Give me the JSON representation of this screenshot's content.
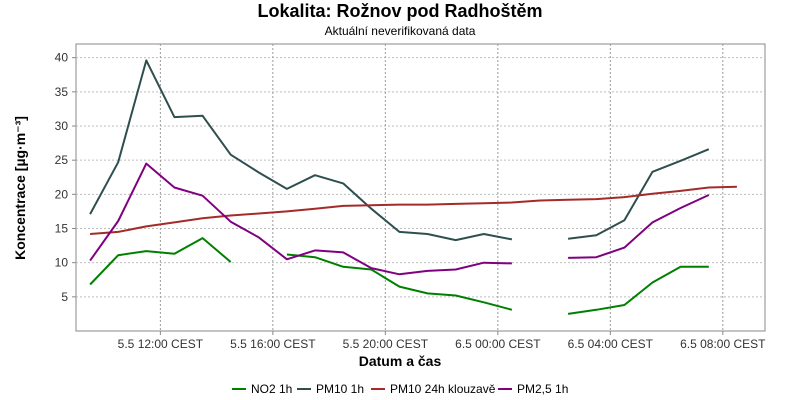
{
  "chart_data": {
    "type": "line",
    "title": "Lokalita: Rožnov pod Radhoštěm",
    "subtitle": "Aktuální neverifikovaná data",
    "xlabel": "Datum a čas",
    "ylabel": "Koncentrace [µg·m⁻³]",
    "ylim": [
      0,
      42
    ],
    "xlim": [
      9,
      33.5
    ],
    "yticks": [
      5,
      10,
      15,
      20,
      25,
      30,
      35,
      40
    ],
    "xticks": [
      {
        "x": 12,
        "label": "5.5 12:00 CEST"
      },
      {
        "x": 16,
        "label": "5.5 16:00 CEST"
      },
      {
        "x": 20,
        "label": "5.5 20:00 CEST"
      },
      {
        "x": 24,
        "label": "6.5 00:00 CEST"
      },
      {
        "x": 28,
        "label": "6.5 04:00 CEST"
      },
      {
        "x": 32,
        "label": "6.5 08:00 CEST"
      }
    ],
    "grid": true,
    "legend_position": "bottom",
    "series": [
      {
        "name": "NO2 1h",
        "color": "#008000",
        "points": [
          [
            9.5,
            6.8
          ],
          [
            10.5,
            11.1
          ],
          [
            11.5,
            11.7
          ],
          [
            12.5,
            11.3
          ],
          [
            13.5,
            13.6
          ],
          [
            14.5,
            10.1
          ],
          null,
          [
            16.5,
            11.2
          ],
          [
            17.5,
            10.8
          ],
          [
            18.5,
            9.4
          ],
          [
            19.5,
            9.0
          ],
          [
            20.5,
            6.5
          ],
          [
            21.5,
            5.5
          ],
          [
            22.5,
            5.2
          ],
          [
            23.5,
            4.2
          ],
          [
            24.5,
            3.1
          ],
          null,
          [
            26.5,
            2.5
          ],
          [
            27.5,
            3.1
          ],
          [
            28.5,
            3.8
          ],
          [
            29.5,
            7.1
          ],
          [
            30.5,
            9.4
          ],
          [
            31.5,
            9.4
          ]
        ]
      },
      {
        "name": "PM10 1h",
        "color": "#2f4f4f",
        "points": [
          [
            9.5,
            17.1
          ],
          [
            10.5,
            24.7
          ],
          [
            11.5,
            39.6
          ],
          [
            12.5,
            31.3
          ],
          [
            13.5,
            31.5
          ],
          [
            14.5,
            25.8
          ],
          [
            15.5,
            23.2
          ],
          [
            16.5,
            20.8
          ],
          [
            17.5,
            22.8
          ],
          [
            18.5,
            21.6
          ],
          [
            19.5,
            17.9
          ],
          [
            20.5,
            14.5
          ],
          [
            21.5,
            14.2
          ],
          [
            22.5,
            13.3
          ],
          [
            23.5,
            14.2
          ],
          [
            24.5,
            13.4
          ],
          null,
          [
            26.5,
            13.5
          ],
          [
            27.5,
            14.0
          ],
          [
            28.5,
            16.2
          ],
          [
            29.5,
            23.3
          ],
          [
            30.5,
            24.9
          ],
          [
            31.5,
            26.6
          ]
        ]
      },
      {
        "name": "PM10 24h klouzavě",
        "color": "#a52a2a",
        "points": [
          [
            9.5,
            14.2
          ],
          [
            10.5,
            14.5
          ],
          [
            11.5,
            15.3
          ],
          [
            12.5,
            15.9
          ],
          [
            13.5,
            16.5
          ],
          [
            14.5,
            16.9
          ],
          [
            15.5,
            17.2
          ],
          [
            16.5,
            17.5
          ],
          [
            17.5,
            17.9
          ],
          [
            18.5,
            18.3
          ],
          [
            19.5,
            18.4
          ],
          [
            20.5,
            18.5
          ],
          [
            21.5,
            18.5
          ],
          [
            22.5,
            18.6
          ],
          [
            23.5,
            18.7
          ],
          [
            24.5,
            18.8
          ],
          [
            25.5,
            19.1
          ],
          [
            26.5,
            19.2
          ],
          [
            27.5,
            19.3
          ],
          [
            28.5,
            19.6
          ],
          [
            29.5,
            20.1
          ],
          [
            30.5,
            20.5
          ],
          [
            31.5,
            21.0
          ],
          [
            32.5,
            21.1
          ]
        ]
      },
      {
        "name": "PM2,5 1h",
        "color": "#800080",
        "points": [
          [
            9.5,
            10.3
          ],
          [
            10.5,
            16.1
          ],
          [
            11.5,
            24.5
          ],
          [
            12.5,
            21.0
          ],
          [
            13.5,
            19.8
          ],
          [
            14.5,
            16.0
          ],
          [
            15.5,
            13.7
          ],
          [
            16.5,
            10.5
          ],
          [
            17.5,
            11.8
          ],
          [
            18.5,
            11.5
          ],
          [
            19.5,
            9.2
          ],
          [
            20.5,
            8.3
          ],
          [
            21.5,
            8.8
          ],
          [
            22.5,
            9.0
          ],
          [
            23.5,
            10.0
          ],
          [
            24.5,
            9.9
          ],
          null,
          [
            26.5,
            10.7
          ],
          [
            27.5,
            10.8
          ],
          [
            28.5,
            12.2
          ],
          [
            29.5,
            15.9
          ],
          [
            30.5,
            18.0
          ],
          [
            31.5,
            19.9
          ]
        ]
      }
    ]
  }
}
